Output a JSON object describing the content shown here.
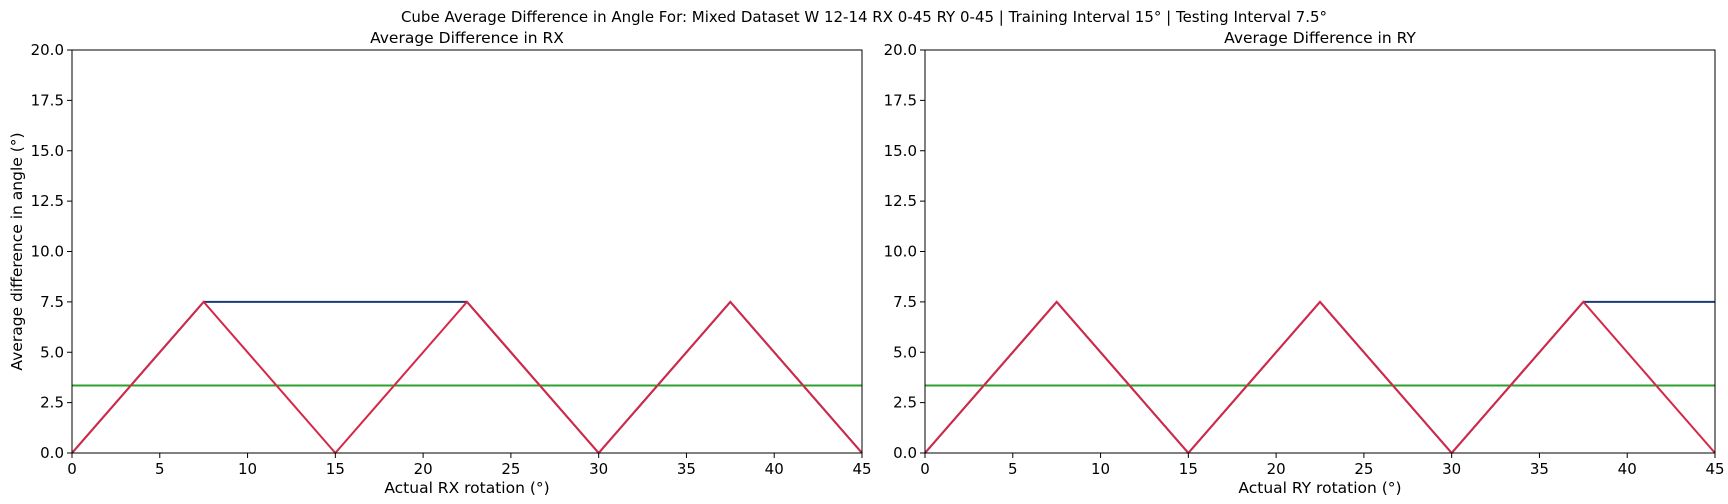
{
  "suptitle": "Cube Average Difference in Angle For: Mixed Dataset W 12-14 RX 0-45 RY 0-45 | Training Interval 15° | Testing Interval 7.5°",
  "chart_data": [
    {
      "type": "line",
      "title": "Average Difference in RX",
      "xlabel": "Actual RX rotation (°)",
      "ylabel": "Average difference in angle (°)",
      "xlim": [
        0,
        45
      ],
      "ylim": [
        0,
        20
      ],
      "xticks": [
        "0",
        "5",
        "10",
        "15",
        "20",
        "25",
        "30",
        "35",
        "40",
        "45"
      ],
      "yticks": [
        "0.0",
        "2.5",
        "5.0",
        "7.5",
        "10.0",
        "12.5",
        "15.0",
        "17.5",
        "20.0"
      ],
      "grid": false,
      "series": [
        {
          "color": "#1f3a7a",
          "x": [
            0,
            7.5,
            15,
            22.5,
            30,
            37.5,
            45
          ],
          "y": [
            0,
            7.5,
            7.5,
            7.5,
            0,
            7.5,
            0
          ]
        },
        {
          "color": "#2ca02c",
          "x": [
            0,
            45
          ],
          "y": [
            3.35,
            3.35
          ]
        },
        {
          "color": "#d62747",
          "x": [
            0,
            7.5,
            15,
            22.5,
            30,
            37.5,
            45
          ],
          "y": [
            0,
            7.5,
            0,
            7.5,
            0,
            7.5,
            0
          ]
        }
      ]
    },
    {
      "type": "line",
      "title": "Average Difference in RY",
      "xlabel": "Actual RY rotation (°)",
      "ylabel": "",
      "xlim": [
        0,
        45
      ],
      "ylim": [
        0,
        20
      ],
      "xticks": [
        "0",
        "5",
        "10",
        "15",
        "20",
        "25",
        "30",
        "35",
        "40",
        "45"
      ],
      "yticks": [
        "0.0",
        "2.5",
        "5.0",
        "7.5",
        "10.0",
        "12.5",
        "15.0",
        "17.5",
        "20.0"
      ],
      "grid": false,
      "series": [
        {
          "color": "#1f3a7a",
          "x": [
            0,
            7.5,
            15,
            22.5,
            30,
            37.5,
            45
          ],
          "y": [
            0,
            7.5,
            0,
            7.5,
            0,
            7.5,
            7.5
          ]
        },
        {
          "color": "#2ca02c",
          "x": [
            0,
            45
          ],
          "y": [
            3.35,
            3.35
          ]
        },
        {
          "color": "#d62747",
          "x": [
            0,
            7.5,
            15,
            22.5,
            30,
            37.5,
            45
          ],
          "y": [
            0,
            7.5,
            0,
            7.5,
            0,
            7.5,
            0
          ]
        }
      ]
    }
  ]
}
